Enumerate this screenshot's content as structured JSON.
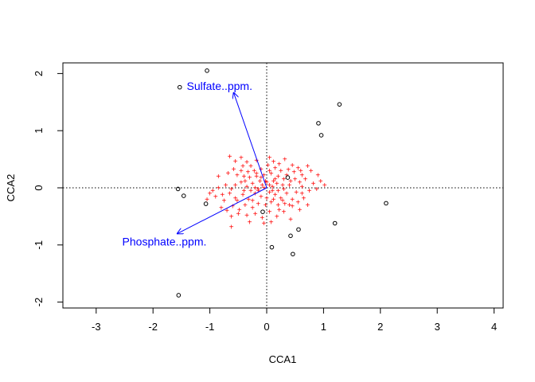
{
  "chart_data": {
    "type": "scatter",
    "xlabel": "CCA1",
    "ylabel": "CCA2",
    "xlim": [
      -3.6,
      4.1
    ],
    "ylim": [
      -2.1,
      2.2
    ],
    "xticks": [
      -3,
      -2,
      -1,
      0,
      1,
      2,
      3,
      4
    ],
    "yticks": [
      -2,
      -1,
      0,
      1,
      2
    ],
    "xtick_labels": [
      "-3",
      "-2",
      "-1",
      "0",
      "1",
      "2",
      "3",
      "4"
    ],
    "ytick_labels": [
      "-2",
      "-1",
      "0",
      "1",
      "2"
    ],
    "grid": false,
    "reference_lines": {
      "x": 0,
      "y": 0,
      "style": "dotted"
    },
    "colors": {
      "sites": "#000000",
      "species": "#ff0000",
      "arrows": "#0000ff"
    },
    "sites": [
      {
        "x": -1.05,
        "y": 2.05
      },
      {
        "x": -1.53,
        "y": 1.76
      },
      {
        "x": 1.28,
        "y": 1.46
      },
      {
        "x": 0.91,
        "y": 1.13
      },
      {
        "x": 0.96,
        "y": 0.92
      },
      {
        "x": 0.37,
        "y": 0.18
      },
      {
        "x": -1.56,
        "y": -0.02
      },
      {
        "x": -1.46,
        "y": -0.14
      },
      {
        "x": -1.07,
        "y": -0.28
      },
      {
        "x": 2.1,
        "y": -0.27
      },
      {
        "x": -0.07,
        "y": -0.42
      },
      {
        "x": 1.2,
        "y": -0.62
      },
      {
        "x": 0.56,
        "y": -0.73
      },
      {
        "x": 0.42,
        "y": -0.84
      },
      {
        "x": 0.09,
        "y": -1.04
      },
      {
        "x": 0.46,
        "y": -1.16
      },
      {
        "x": -1.55,
        "y": -1.88
      }
    ],
    "species_marker": "+",
    "species": [
      [
        -0.65,
        0.55
      ],
      [
        -0.55,
        0.47
      ],
      [
        -0.45,
        0.53
      ],
      [
        -0.35,
        0.45
      ],
      [
        -0.28,
        0.38
      ],
      [
        -0.18,
        0.48
      ],
      [
        0.05,
        0.53
      ],
      [
        0.12,
        0.46
      ],
      [
        0.22,
        0.42
      ],
      [
        0.32,
        0.5
      ],
      [
        0.45,
        0.4
      ],
      [
        0.55,
        0.35
      ],
      [
        0.72,
        0.38
      ],
      [
        0.78,
        0.3
      ],
      [
        0.62,
        0.22
      ],
      [
        0.48,
        0.28
      ],
      [
        0.38,
        0.32
      ],
      [
        0.25,
        0.3
      ],
      [
        0.15,
        0.35
      ],
      [
        0.02,
        0.4
      ],
      [
        -0.1,
        0.33
      ],
      [
        -0.22,
        0.3
      ],
      [
        -0.33,
        0.28
      ],
      [
        -0.45,
        0.3
      ],
      [
        -0.58,
        0.33
      ],
      [
        -0.68,
        0.26
      ],
      [
        -0.52,
        0.22
      ],
      [
        -0.4,
        0.2
      ],
      [
        -0.3,
        0.18
      ],
      [
        -0.18,
        0.2
      ],
      [
        -0.05,
        0.22
      ],
      [
        0.08,
        0.25
      ],
      [
        0.2,
        0.2
      ],
      [
        0.3,
        0.15
      ],
      [
        0.42,
        0.12
      ],
      [
        0.58,
        0.1
      ],
      [
        0.68,
        0.15
      ],
      [
        0.82,
        0.08
      ],
      [
        0.95,
        0.12
      ],
      [
        1.02,
        0.05
      ],
      [
        0.88,
        -0.02
      ],
      [
        0.75,
        -0.05
      ],
      [
        0.62,
        0.02
      ],
      [
        0.52,
        -0.08
      ],
      [
        0.4,
        0.05
      ],
      [
        0.3,
        -0.02
      ],
      [
        0.18,
        0.08
      ],
      [
        0.1,
        0.02
      ],
      [
        0.0,
        0.1
      ],
      [
        -0.08,
        0.05
      ],
      [
        -0.15,
        -0.02
      ],
      [
        -0.25,
        0.08
      ],
      [
        -0.35,
        0.02
      ],
      [
        -0.45,
        0.1
      ],
      [
        -0.55,
        0.05
      ],
      [
        -0.62,
        -0.02
      ],
      [
        -0.72,
        0.05
      ],
      [
        -0.85,
        0.0
      ],
      [
        -0.95,
        -0.05
      ],
      [
        -1.05,
        -0.2
      ],
      [
        -0.9,
        -0.15
      ],
      [
        -0.78,
        -0.12
      ],
      [
        -0.65,
        -0.1
      ],
      [
        -0.55,
        -0.18
      ],
      [
        -0.42,
        -0.12
      ],
      [
        -0.32,
        -0.2
      ],
      [
        -0.2,
        -0.1
      ],
      [
        -0.1,
        -0.15
      ],
      [
        0.05,
        -0.08
      ],
      [
        0.15,
        -0.12
      ],
      [
        0.25,
        -0.18
      ],
      [
        0.35,
        -0.1
      ],
      [
        0.45,
        -0.2
      ],
      [
        0.55,
        -0.25
      ],
      [
        0.65,
        -0.18
      ],
      [
        0.72,
        -0.3
      ],
      [
        0.58,
        -0.38
      ],
      [
        0.45,
        -0.32
      ],
      [
        0.32,
        -0.28
      ],
      [
        0.2,
        -0.3
      ],
      [
        0.08,
        -0.25
      ],
      [
        -0.02,
        -0.3
      ],
      [
        -0.15,
        -0.28
      ],
      [
        -0.25,
        -0.35
      ],
      [
        -0.38,
        -0.3
      ],
      [
        -0.48,
        -0.38
      ],
      [
        -0.6,
        -0.32
      ],
      [
        -0.7,
        -0.4
      ],
      [
        -0.8,
        -0.35
      ],
      [
        -0.62,
        -0.5
      ],
      [
        -0.5,
        -0.45
      ],
      [
        -0.35,
        -0.48
      ],
      [
        -0.2,
        -0.45
      ],
      [
        -0.08,
        -0.52
      ],
      [
        0.05,
        -0.42
      ],
      [
        0.18,
        -0.5
      ],
      [
        0.3,
        -0.42
      ],
      [
        0.42,
        -0.55
      ],
      [
        0.08,
        -0.6
      ],
      [
        -0.05,
        -0.62
      ],
      [
        -0.3,
        -0.6
      ],
      [
        -0.62,
        -0.68
      ],
      [
        -0.15,
        -0.05
      ],
      [
        -0.05,
        0.0
      ],
      [
        0.05,
        0.05
      ],
      [
        0.12,
        0.12
      ],
      [
        -0.12,
        0.12
      ],
      [
        -0.2,
        0.0
      ],
      [
        0.2,
        -0.05
      ],
      [
        0.28,
        0.05
      ],
      [
        -0.28,
        -0.05
      ],
      [
        -0.4,
        -0.05
      ],
      [
        0.0,
        -0.18
      ],
      [
        -0.1,
        0.18
      ],
      [
        0.12,
        -0.2
      ],
      [
        0.35,
        0.22
      ],
      [
        -0.38,
        0.12
      ],
      [
        0.05,
        0.3
      ],
      [
        -0.25,
        -0.22
      ],
      [
        0.22,
        -0.38
      ],
      [
        -0.52,
        -0.22
      ],
      [
        0.5,
        0.15
      ],
      [
        0.62,
        -0.1
      ],
      [
        -0.75,
        -0.22
      ],
      [
        0.15,
        0.15
      ],
      [
        -0.02,
        0.12
      ],
      [
        0.1,
        -0.05
      ],
      [
        -0.18,
        0.25
      ],
      [
        0.28,
        -0.22
      ],
      [
        0.4,
        -0.3
      ],
      [
        -0.42,
        0.38
      ],
      [
        0.6,
        0.3
      ],
      [
        -0.85,
        0.2
      ],
      [
        0.9,
        0.22
      ],
      [
        -1.0,
        -0.1
      ]
    ],
    "arrows": [
      {
        "label": "Sulfate..ppm.",
        "x": -0.58,
        "y": 1.66,
        "label_x": -0.83,
        "label_y": 1.78
      },
      {
        "label": "Phosphate..ppm.",
        "x": -1.57,
        "y": -0.8,
        "label_x": -1.8,
        "label_y": -0.94
      }
    ]
  }
}
